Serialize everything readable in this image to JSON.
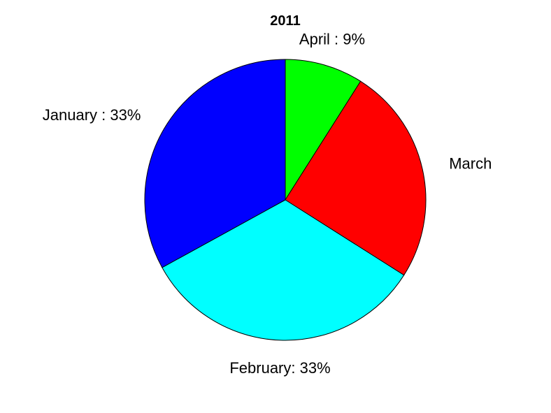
{
  "chart_data": {
    "type": "pie",
    "title": "2011",
    "slices": [
      {
        "category": "April",
        "label": "April : 9%",
        "value": 9,
        "color": "#00ff00"
      },
      {
        "category": "March",
        "label": "March",
        "value": 25,
        "color": "#ff0000"
      },
      {
        "category": "February",
        "label": "February: 33%",
        "value": 33,
        "color": "#00ffff"
      },
      {
        "category": "January",
        "label": "January : 33%",
        "value": 33,
        "color": "#0000ff"
      }
    ],
    "start": "12 o'clock",
    "direction": "clockwise",
    "legend": "none"
  }
}
